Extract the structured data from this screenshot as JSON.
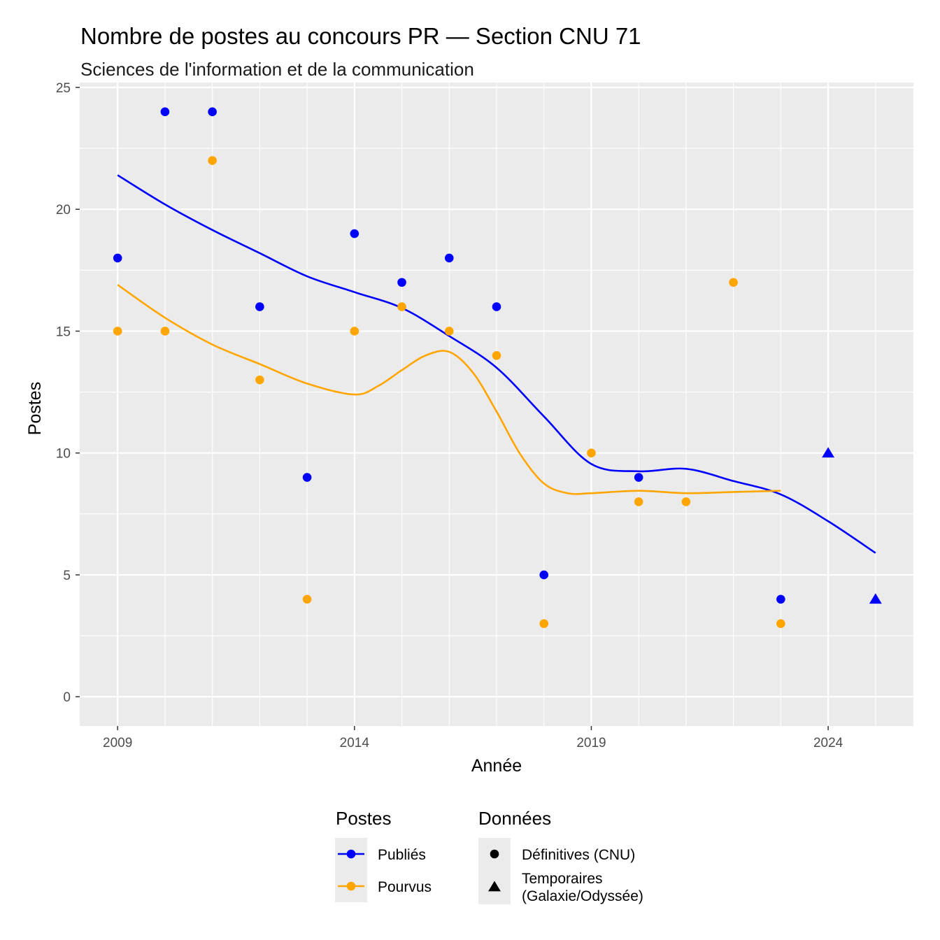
{
  "chart_data": {
    "type": "scatter",
    "title": "Nombre de postes au concours PR  —  Section CNU 71",
    "subtitle": "Sciences de l'information et de la communication",
    "xlabel": "Année",
    "ylabel": "Postes",
    "xlim": [
      2008.2,
      2025.8
    ],
    "ylim": [
      -1.2,
      25.2
    ],
    "x_ticks": [
      2009,
      2014,
      2019,
      2024
    ],
    "y_ticks": [
      0,
      5,
      10,
      15,
      20,
      25
    ],
    "grid": true,
    "series": [
      {
        "name": "Publiés",
        "color": "#0000ff",
        "points": [
          {
            "x": 2009,
            "y": 18,
            "shape": "circle"
          },
          {
            "x": 2010,
            "y": 24,
            "shape": "circle"
          },
          {
            "x": 2011,
            "y": 24,
            "shape": "circle"
          },
          {
            "x": 2012,
            "y": 16,
            "shape": "circle"
          },
          {
            "x": 2013,
            "y": 9,
            "shape": "circle"
          },
          {
            "x": 2014,
            "y": 19,
            "shape": "circle"
          },
          {
            "x": 2015,
            "y": 17,
            "shape": "circle"
          },
          {
            "x": 2016,
            "y": 18,
            "shape": "circle"
          },
          {
            "x": 2017,
            "y": 16,
            "shape": "circle"
          },
          {
            "x": 2018,
            "y": 5,
            "shape": "circle"
          },
          {
            "x": 2020,
            "y": 9,
            "shape": "circle"
          },
          {
            "x": 2023,
            "y": 4,
            "shape": "circle"
          },
          {
            "x": 2024,
            "y": 10,
            "shape": "triangle"
          },
          {
            "x": 2025,
            "y": 4,
            "shape": "triangle"
          }
        ],
        "smooth": [
          [
            2009,
            21.4
          ],
          [
            2010,
            20.2
          ],
          [
            2011,
            19.15
          ],
          [
            2012,
            18.2
          ],
          [
            2013,
            17.25
          ],
          [
            2014,
            16.6
          ],
          [
            2015,
            15.95
          ],
          [
            2016,
            14.8
          ],
          [
            2017,
            13.5
          ],
          [
            2018,
            11.5
          ],
          [
            2019,
            9.55
          ],
          [
            2020,
            9.25
          ],
          [
            2021,
            9.35
          ],
          [
            2022,
            8.85
          ],
          [
            2023,
            8.3
          ],
          [
            2024,
            7.2
          ],
          [
            2025,
            5.9
          ]
        ]
      },
      {
        "name": "Pourvus",
        "color": "#ffa500",
        "points": [
          {
            "x": 2009,
            "y": 15,
            "shape": "circle"
          },
          {
            "x": 2010,
            "y": 15,
            "shape": "circle"
          },
          {
            "x": 2011,
            "y": 22,
            "shape": "circle"
          },
          {
            "x": 2012,
            "y": 13,
            "shape": "circle"
          },
          {
            "x": 2013,
            "y": 4,
            "shape": "circle"
          },
          {
            "x": 2014,
            "y": 15,
            "shape": "circle"
          },
          {
            "x": 2015,
            "y": 16,
            "shape": "circle"
          },
          {
            "x": 2016,
            "y": 15,
            "shape": "circle"
          },
          {
            "x": 2017,
            "y": 14,
            "shape": "circle"
          },
          {
            "x": 2018,
            "y": 3,
            "shape": "circle"
          },
          {
            "x": 2019,
            "y": 10,
            "shape": "circle"
          },
          {
            "x": 2020,
            "y": 8,
            "shape": "circle"
          },
          {
            "x": 2021,
            "y": 8,
            "shape": "circle"
          },
          {
            "x": 2022,
            "y": 17,
            "shape": "circle"
          },
          {
            "x": 2023,
            "y": 3,
            "shape": "circle"
          }
        ],
        "smooth": [
          [
            2009,
            16.9
          ],
          [
            2010,
            15.55
          ],
          [
            2011,
            14.45
          ],
          [
            2012,
            13.65
          ],
          [
            2013,
            12.85
          ],
          [
            2014,
            12.4
          ],
          [
            2014.5,
            12.75
          ],
          [
            2015,
            13.4
          ],
          [
            2015.5,
            14.0
          ],
          [
            2016,
            14.15
          ],
          [
            2016.5,
            13.3
          ],
          [
            2017,
            11.7
          ],
          [
            2017.5,
            9.95
          ],
          [
            2018,
            8.75
          ],
          [
            2018.5,
            8.35
          ],
          [
            2019,
            8.35
          ],
          [
            2020,
            8.45
          ],
          [
            2021,
            8.35
          ],
          [
            2022,
            8.4
          ],
          [
            2023,
            8.45
          ]
        ]
      }
    ],
    "legend": {
      "placement": "bottom",
      "groups": [
        {
          "title": "Postes",
          "entries": [
            {
              "label": "Publiés",
              "color": "#0000ff",
              "type": "line-point"
            },
            {
              "label": "Pourvus",
              "color": "#ffa500",
              "type": "line-point"
            }
          ]
        },
        {
          "title": "Données",
          "entries": [
            {
              "label_lines": [
                "Définitives (CNU)"
              ],
              "shape": "circle"
            },
            {
              "label_lines": [
                "Temporaires",
                "(Galaxie/Odyssée)"
              ],
              "shape": "triangle"
            }
          ]
        }
      ]
    }
  }
}
